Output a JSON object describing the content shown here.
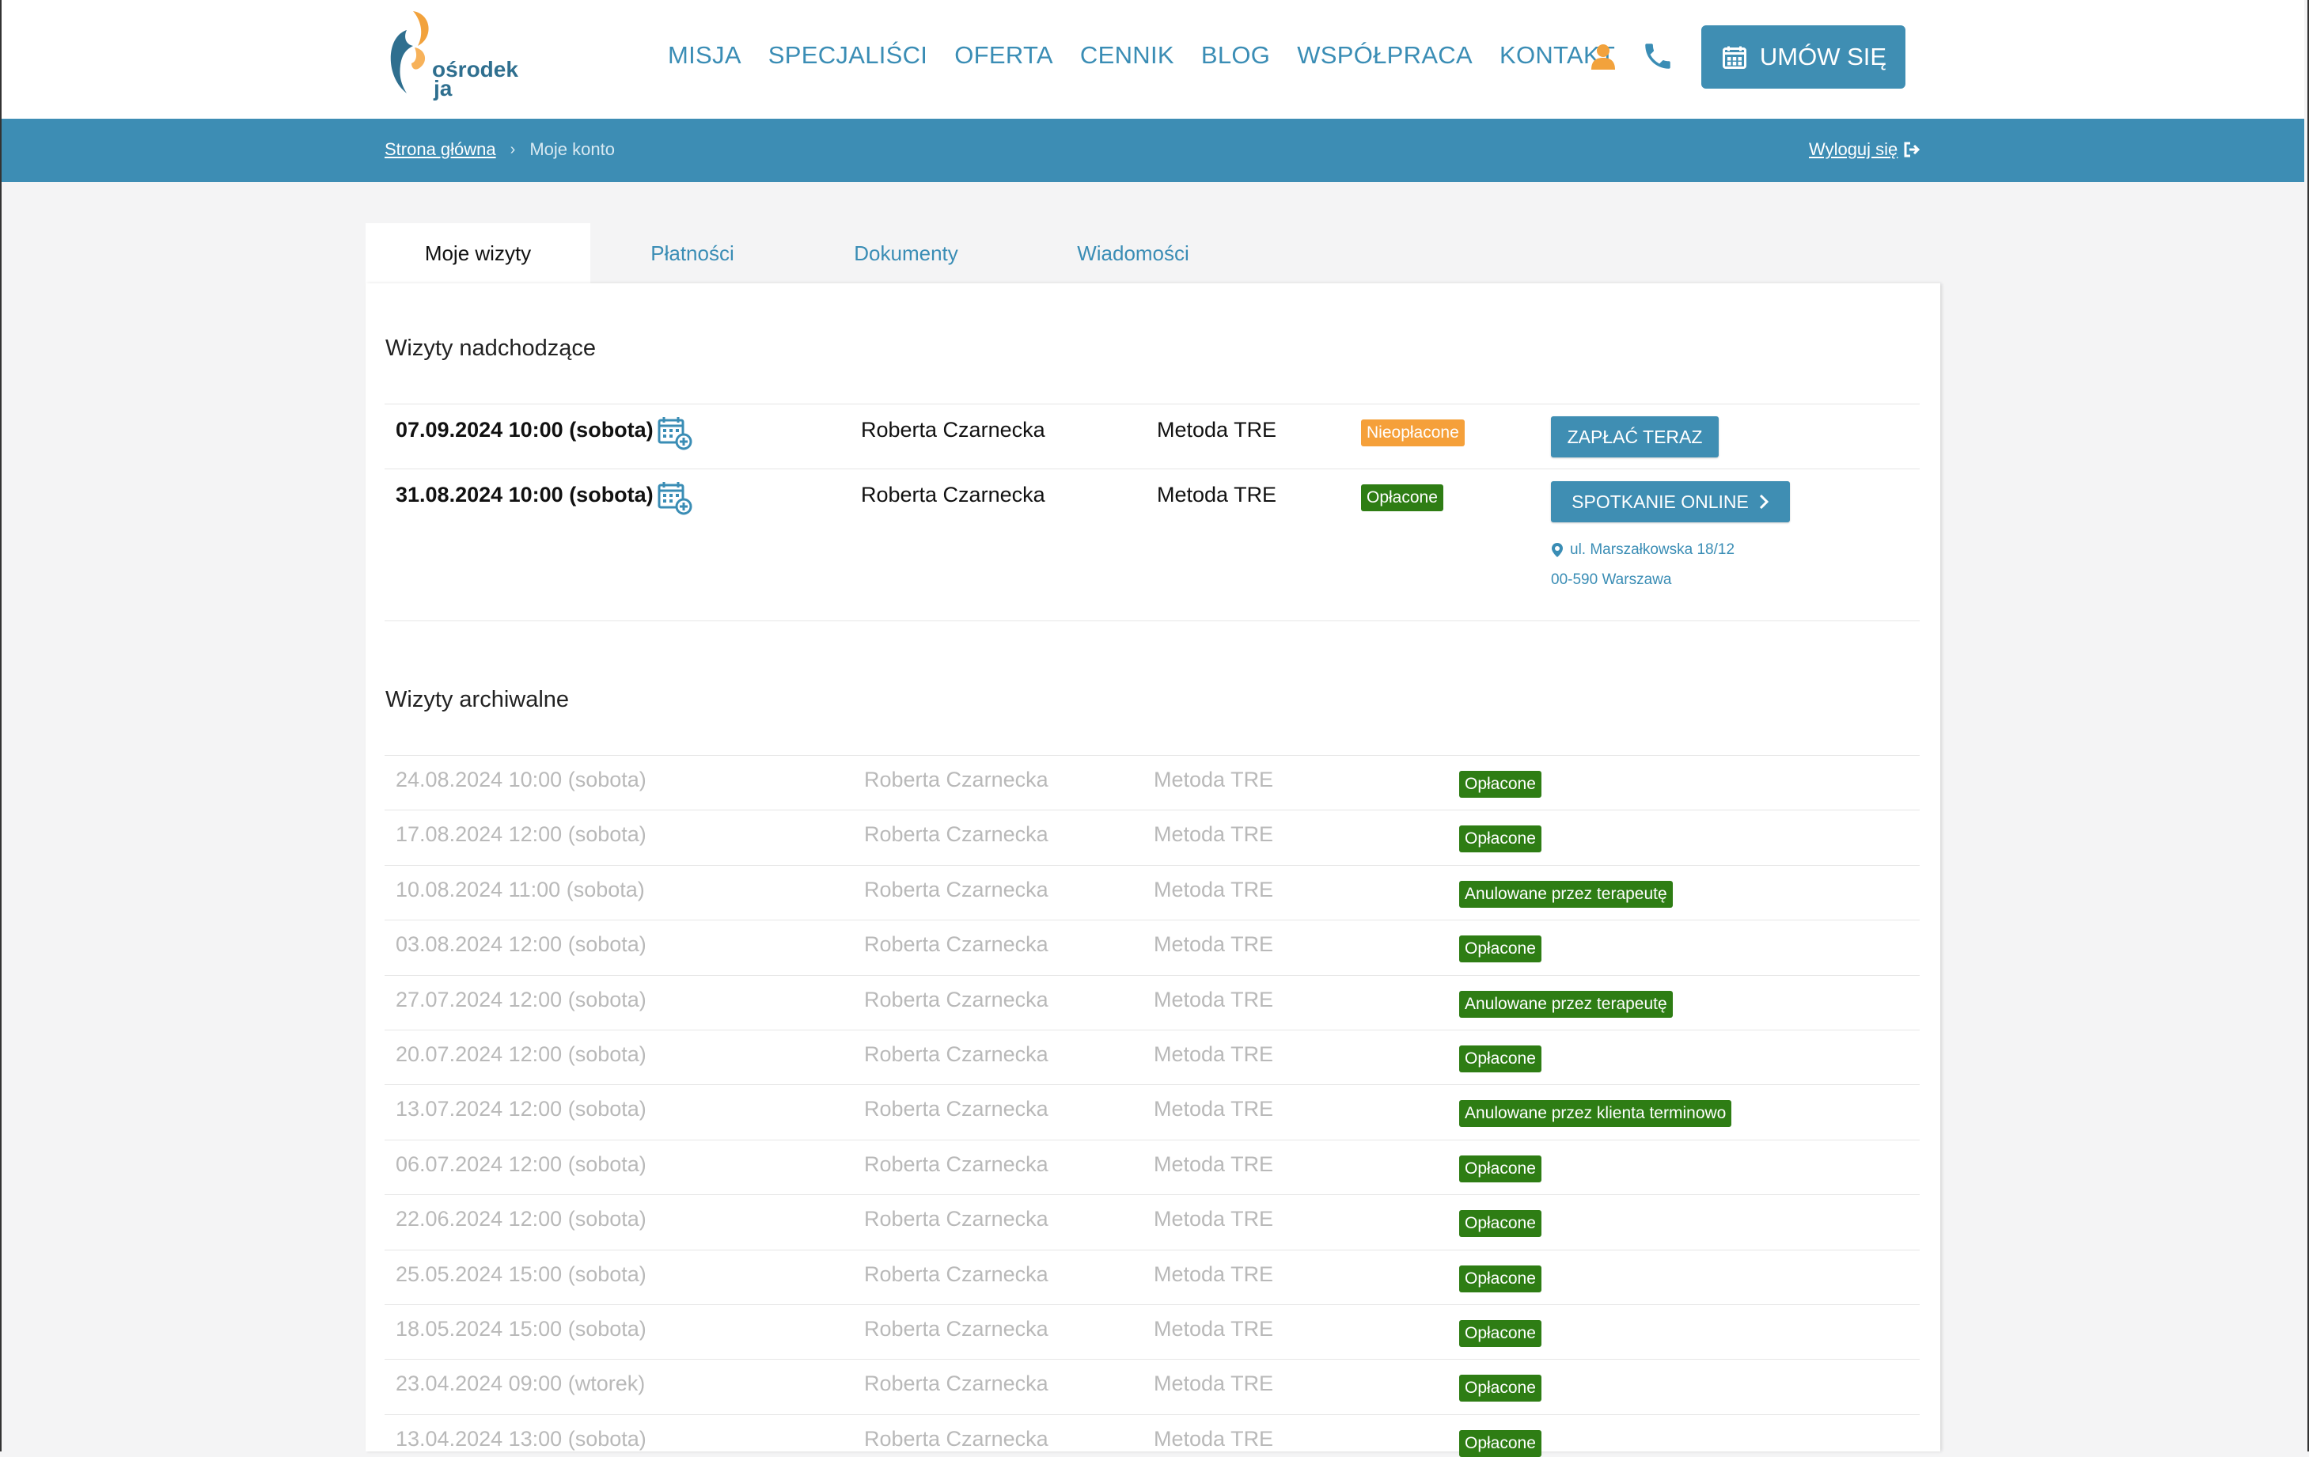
{
  "header": {
    "logo": {
      "line1": "ośrodek",
      "line2": "ja"
    },
    "nav": [
      "MISJA",
      "SPECJALIŚCI",
      "OFERTA",
      "CENNIK",
      "BLOG",
      "WSPÓŁPRACA",
      "KONTAKT"
    ],
    "cta_label": "UMÓW SIĘ"
  },
  "breadcrumb": {
    "home": "Strona główna",
    "separator": "›",
    "current": "Moje konto",
    "logout": "Wyloguj się"
  },
  "tabs": [
    {
      "label": "Moje wizyty",
      "active": true
    },
    {
      "label": "Płatności",
      "active": false
    },
    {
      "label": "Dokumenty",
      "active": false
    },
    {
      "label": "Wiadomości",
      "active": false
    }
  ],
  "upcoming": {
    "title": "Wizyty nadchodzące",
    "rows": [
      {
        "date": "07.09.2024 10:00 (sobota)",
        "therapist": "Roberta Czarnecka",
        "service": "Metoda TRE",
        "status": "Nieopłacone",
        "action": "ZAPŁAĆ TERAZ"
      },
      {
        "date": "31.08.2024 10:00 (sobota)",
        "therapist": "Roberta Czarnecka",
        "service": "Metoda TRE",
        "status": "Opłacone",
        "action": "SPOTKANIE ONLINE",
        "address_line1": "ul. Marszałkowska 18/12",
        "address_line2": "00-590 Warszawa"
      }
    ]
  },
  "archive": {
    "title": "Wizyty archiwalne",
    "rows": [
      {
        "date": "24.08.2024 10:00 (sobota)",
        "therapist": "Roberta Czarnecka",
        "service": "Metoda TRE",
        "status": "Opłacone"
      },
      {
        "date": "17.08.2024 12:00 (sobota)",
        "therapist": "Roberta Czarnecka",
        "service": "Metoda TRE",
        "status": "Opłacone"
      },
      {
        "date": "10.08.2024 11:00 (sobota)",
        "therapist": "Roberta Czarnecka",
        "service": "Metoda TRE",
        "status": "Anulowane przez terapeutę"
      },
      {
        "date": "03.08.2024 12:00 (sobota)",
        "therapist": "Roberta Czarnecka",
        "service": "Metoda TRE",
        "status": "Opłacone"
      },
      {
        "date": "27.07.2024 12:00 (sobota)",
        "therapist": "Roberta Czarnecka",
        "service": "Metoda TRE",
        "status": "Anulowane przez terapeutę"
      },
      {
        "date": "20.07.2024 12:00 (sobota)",
        "therapist": "Roberta Czarnecka",
        "service": "Metoda TRE",
        "status": "Opłacone"
      },
      {
        "date": "13.07.2024 12:00 (sobota)",
        "therapist": "Roberta Czarnecka",
        "service": "Metoda TRE",
        "status": "Anulowane przez klienta terminowo"
      },
      {
        "date": "06.07.2024 12:00 (sobota)",
        "therapist": "Roberta Czarnecka",
        "service": "Metoda TRE",
        "status": "Opłacone"
      },
      {
        "date": "22.06.2024 12:00 (sobota)",
        "therapist": "Roberta Czarnecka",
        "service": "Metoda TRE",
        "status": "Opłacone"
      },
      {
        "date": "25.05.2024 15:00 (sobota)",
        "therapist": "Roberta Czarnecka",
        "service": "Metoda TRE",
        "status": "Opłacone"
      },
      {
        "date": "18.05.2024 15:00 (sobota)",
        "therapist": "Roberta Czarnecka",
        "service": "Metoda TRE",
        "status": "Opłacone"
      },
      {
        "date": "23.04.2024 09:00 (wtorek)",
        "therapist": "Roberta Czarnecka",
        "service": "Metoda TRE",
        "status": "Opłacone"
      },
      {
        "date": "13.04.2024 13:00 (sobota)",
        "therapist": "Roberta Czarnecka",
        "service": "Metoda TRE",
        "status": "Opłacone"
      }
    ]
  },
  "colors": {
    "brand_blue": "#3d8db4",
    "paid_green": "#2e7d14",
    "unpaid_orange": "#f5a03a",
    "logo_orange": "#f2a23c"
  }
}
